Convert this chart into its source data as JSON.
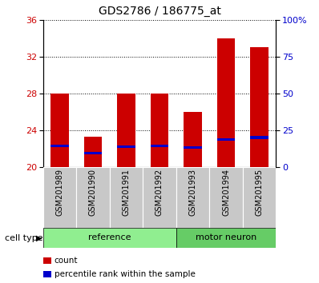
{
  "title": "GDS2786 / 186775_at",
  "samples": [
    "GSM201989",
    "GSM201990",
    "GSM201991",
    "GSM201992",
    "GSM201993",
    "GSM201994",
    "GSM201995"
  ],
  "count_values": [
    28.0,
    23.3,
    28.0,
    28.0,
    26.0,
    34.0,
    33.0
  ],
  "percentile_values": [
    22.3,
    21.5,
    22.2,
    22.3,
    22.1,
    23.0,
    23.2
  ],
  "baseline": 20,
  "ylim_left": [
    20,
    36
  ],
  "ylim_right": [
    0,
    100
  ],
  "yticks_left": [
    20,
    24,
    28,
    32,
    36
  ],
  "yticks_right": [
    0,
    25,
    50,
    75,
    100
  ],
  "ytick_right_labels": [
    "0",
    "25",
    "50",
    "75",
    "100%"
  ],
  "bar_color": "#cc0000",
  "percentile_color": "#0000cc",
  "bar_width": 0.55,
  "groups": [
    {
      "label": "reference",
      "indices": [
        0,
        1,
        2,
        3
      ],
      "color": "#90ee90"
    },
    {
      "label": "motor neuron",
      "indices": [
        4,
        5,
        6
      ],
      "color": "#66cc66"
    }
  ],
  "cell_type_label": "cell type",
  "legend_items": [
    {
      "label": "count",
      "color": "#cc0000"
    },
    {
      "label": "percentile rank within the sample",
      "color": "#0000cc"
    }
  ],
  "tick_label_color_left": "#cc0000",
  "tick_label_color_right": "#0000cc",
  "xlabel_bg": "#c8c8c8"
}
